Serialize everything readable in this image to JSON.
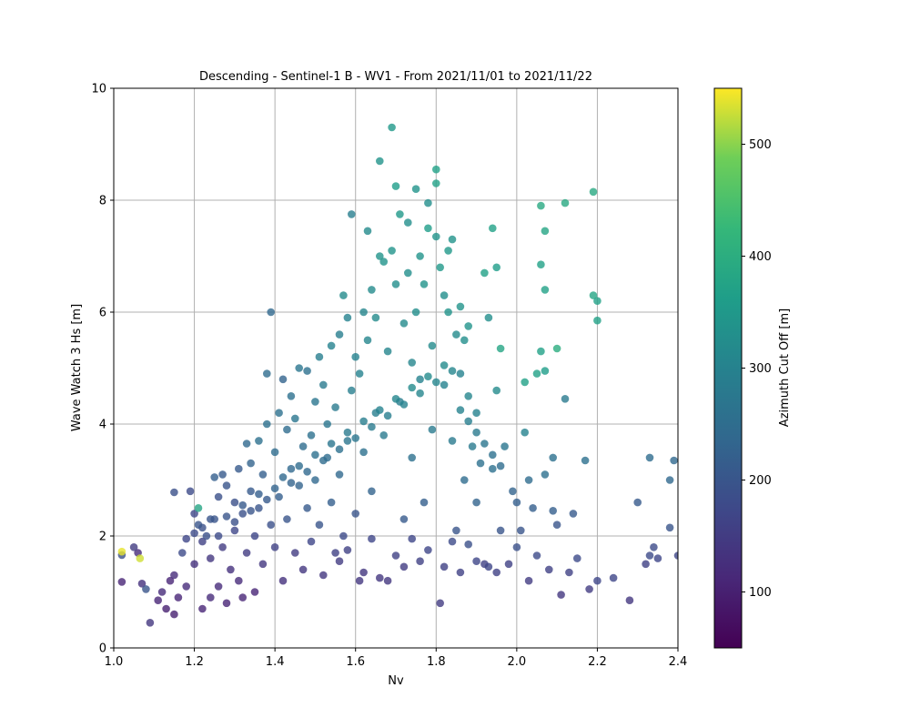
{
  "chart_data": {
    "type": "scatter",
    "title": "Descending - Sentinel-1 B - WV1 - From 2021/11/01 to 2021/11/22",
    "xlabel": "Nv",
    "ylabel": "Wave Watch 3 Hs [m]",
    "xlim": [
      1.0,
      2.4
    ],
    "ylim": [
      0,
      10
    ],
    "xticks": [
      "1.0",
      "1.2",
      "1.4",
      "1.6",
      "1.8",
      "2.0",
      "2.2",
      "2.4"
    ],
    "yticks": [
      "0",
      "2",
      "4",
      "6",
      "8",
      "10"
    ],
    "grid": true,
    "colorbar": {
      "label": "Azimuth Cut Off [m]",
      "range": [
        50,
        550
      ],
      "ticks": [
        "100",
        "200",
        "300",
        "400",
        "500"
      ],
      "colormap": "viridis"
    },
    "points": [
      [
        1.02,
        1.72,
        540
      ],
      [
        1.065,
        1.6,
        530
      ],
      [
        1.02,
        1.18,
        110
      ],
      [
        1.02,
        1.66,
        190
      ],
      [
        1.05,
        1.8,
        150
      ],
      [
        1.06,
        1.7,
        120
      ],
      [
        1.07,
        1.15,
        130
      ],
      [
        1.08,
        1.05,
        200
      ],
      [
        1.09,
        0.45,
        140
      ],
      [
        1.11,
        0.85,
        110
      ],
      [
        1.12,
        1.0,
        120
      ],
      [
        1.13,
        0.7,
        100
      ],
      [
        1.14,
        1.2,
        110
      ],
      [
        1.15,
        0.6,
        100
      ],
      [
        1.15,
        1.3,
        120
      ],
      [
        1.16,
        0.9,
        110
      ],
      [
        1.17,
        1.7,
        180
      ],
      [
        1.18,
        1.1,
        120
      ],
      [
        1.19,
        2.8,
        180
      ],
      [
        1.15,
        2.78,
        190
      ],
      [
        1.2,
        2.4,
        170
      ],
      [
        1.2,
        1.5,
        130
      ],
      [
        1.21,
        2.2,
        200
      ],
      [
        1.21,
        2.5,
        380
      ],
      [
        1.22,
        0.7,
        110
      ],
      [
        1.22,
        1.9,
        160
      ],
      [
        1.23,
        2.0,
        190
      ],
      [
        1.24,
        0.9,
        120
      ],
      [
        1.24,
        1.6,
        140
      ],
      [
        1.25,
        3.05,
        220
      ],
      [
        1.25,
        2.3,
        200
      ],
      [
        1.26,
        1.1,
        120
      ],
      [
        1.26,
        2.7,
        190
      ],
      [
        1.27,
        3.1,
        210
      ],
      [
        1.27,
        1.8,
        150
      ],
      [
        1.28,
        2.9,
        200
      ],
      [
        1.28,
        0.8,
        110
      ],
      [
        1.29,
        1.4,
        130
      ],
      [
        1.3,
        2.6,
        190
      ],
      [
        1.3,
        2.1,
        170
      ],
      [
        1.31,
        3.2,
        210
      ],
      [
        1.31,
        1.2,
        120
      ],
      [
        1.32,
        2.4,
        190
      ],
      [
        1.32,
        0.9,
        110
      ],
      [
        1.33,
        3.65,
        240
      ],
      [
        1.33,
        1.7,
        150
      ],
      [
        1.34,
        2.8,
        210
      ],
      [
        1.34,
        3.3,
        230
      ],
      [
        1.35,
        1.0,
        110
      ],
      [
        1.35,
        2.0,
        170
      ],
      [
        1.36,
        3.7,
        260
      ],
      [
        1.36,
        2.5,
        200
      ],
      [
        1.37,
        1.5,
        140
      ],
      [
        1.37,
        3.1,
        220
      ],
      [
        1.38,
        4.9,
        250
      ],
      [
        1.38,
        4.0,
        260
      ],
      [
        1.39,
        6.0,
        240
      ],
      [
        1.39,
        2.2,
        190
      ],
      [
        1.4,
        3.5,
        250
      ],
      [
        1.4,
        1.8,
        160
      ],
      [
        1.41,
        4.2,
        260
      ],
      [
        1.41,
        2.7,
        220
      ],
      [
        1.42,
        4.8,
        230
      ],
      [
        1.42,
        1.2,
        130
      ],
      [
        1.43,
        3.9,
        250
      ],
      [
        1.43,
        2.3,
        200
      ],
      [
        1.44,
        4.5,
        260
      ],
      [
        1.44,
        3.2,
        240
      ],
      [
        1.45,
        1.7,
        150
      ],
      [
        1.45,
        4.1,
        270
      ],
      [
        1.46,
        5.0,
        270
      ],
      [
        1.46,
        2.9,
        230
      ],
      [
        1.47,
        3.6,
        250
      ],
      [
        1.47,
        1.4,
        140
      ],
      [
        1.48,
        4.95,
        260
      ],
      [
        1.48,
        2.5,
        210
      ],
      [
        1.49,
        3.8,
        260
      ],
      [
        1.49,
        1.9,
        170
      ],
      [
        1.5,
        4.4,
        270
      ],
      [
        1.5,
        3.0,
        240
      ],
      [
        1.51,
        5.2,
        290
      ],
      [
        1.51,
        2.2,
        200
      ],
      [
        1.52,
        4.7,
        280
      ],
      [
        1.52,
        1.3,
        140
      ],
      [
        1.53,
        3.4,
        250
      ],
      [
        1.53,
        4.0,
        270
      ],
      [
        1.54,
        5.4,
        300
      ],
      [
        1.54,
        2.6,
        220
      ],
      [
        1.55,
        4.3,
        280
      ],
      [
        1.55,
        1.7,
        160
      ],
      [
        1.56,
        5.6,
        290
      ],
      [
        1.56,
        3.1,
        240
      ],
      [
        1.57,
        6.3,
        320
      ],
      [
        1.57,
        2.0,
        180
      ],
      [
        1.58,
        5.9,
        300
      ],
      [
        1.58,
        3.7,
        270
      ],
      [
        1.59,
        7.75,
        290
      ],
      [
        1.59,
        4.6,
        290
      ],
      [
        1.6,
        5.2,
        300
      ],
      [
        1.6,
        2.4,
        200
      ],
      [
        1.61,
        4.9,
        300
      ],
      [
        1.61,
        1.2,
        140
      ],
      [
        1.62,
        6.0,
        310
      ],
      [
        1.62,
        3.5,
        260
      ],
      [
        1.63,
        7.45,
        320
      ],
      [
        1.63,
        5.5,
        310
      ],
      [
        1.64,
        6.4,
        320
      ],
      [
        1.64,
        2.8,
        230
      ],
      [
        1.65,
        5.9,
        320
      ],
      [
        1.65,
        4.2,
        290
      ],
      [
        1.66,
        7.0,
        340
      ],
      [
        1.66,
        8.7,
        340
      ],
      [
        1.67,
        6.9,
        340
      ],
      [
        1.67,
        3.8,
        280
      ],
      [
        1.68,
        5.3,
        310
      ],
      [
        1.68,
        1.2,
        140
      ],
      [
        1.69,
        7.1,
        340
      ],
      [
        1.69,
        9.3,
        350
      ],
      [
        1.7,
        8.25,
        360
      ],
      [
        1.7,
        6.5,
        330
      ],
      [
        1.71,
        4.4,
        290
      ],
      [
        1.71,
        7.75,
        350
      ],
      [
        1.72,
        5.8,
        320
      ],
      [
        1.72,
        2.3,
        210
      ],
      [
        1.73,
        6.7,
        330
      ],
      [
        1.73,
        7.6,
        330
      ],
      [
        1.74,
        5.1,
        310
      ],
      [
        1.74,
        3.4,
        260
      ],
      [
        1.75,
        8.2,
        340
      ],
      [
        1.75,
        6.0,
        330
      ],
      [
        1.76,
        4.8,
        300
      ],
      [
        1.76,
        7.0,
        340
      ],
      [
        1.77,
        6.5,
        340
      ],
      [
        1.77,
        2.6,
        220
      ],
      [
        1.78,
        7.5,
        360
      ],
      [
        1.78,
        7.95,
        330
      ],
      [
        1.79,
        5.4,
        320
      ],
      [
        1.79,
        3.9,
        280
      ],
      [
        1.8,
        8.55,
        370
      ],
      [
        1.8,
        8.3,
        370
      ],
      [
        1.8,
        7.35,
        340
      ],
      [
        1.81,
        0.8,
        150
      ],
      [
        1.81,
        6.8,
        350
      ],
      [
        1.82,
        6.3,
        330
      ],
      [
        1.82,
        4.7,
        300
      ],
      [
        1.83,
        7.1,
        350
      ],
      [
        1.83,
        6.0,
        340
      ],
      [
        1.84,
        7.3,
        340
      ],
      [
        1.84,
        3.7,
        280
      ],
      [
        1.85,
        5.6,
        320
      ],
      [
        1.85,
        2.1,
        200
      ],
      [
        1.86,
        6.1,
        340
      ],
      [
        1.86,
        4.9,
        300
      ],
      [
        1.87,
        5.5,
        330
      ],
      [
        1.87,
        3.0,
        250
      ],
      [
        1.88,
        4.5,
        310
      ],
      [
        1.88,
        5.75,
        340
      ],
      [
        1.89,
        3.6,
        280
      ],
      [
        1.9,
        4.2,
        300
      ],
      [
        1.9,
        2.6,
        230
      ],
      [
        1.91,
        3.3,
        260
      ],
      [
        1.92,
        6.7,
        370
      ],
      [
        1.92,
        1.5,
        160
      ],
      [
        1.93,
        5.9,
        330
      ],
      [
        1.94,
        7.5,
        370
      ],
      [
        1.94,
        3.2,
        260
      ],
      [
        1.95,
        6.8,
        360
      ],
      [
        1.95,
        4.6,
        320
      ],
      [
        1.96,
        5.35,
        380
      ],
      [
        1.96,
        2.1,
        200
      ],
      [
        1.97,
        3.6,
        270
      ],
      [
        1.98,
        1.5,
        160
      ],
      [
        1.99,
        2.8,
        230
      ],
      [
        2.0,
        1.8,
        190
      ],
      [
        2.0,
        2.6,
        220
      ],
      [
        2.01,
        2.1,
        200
      ],
      [
        2.02,
        4.75,
        370
      ],
      [
        2.02,
        3.85,
        300
      ],
      [
        2.03,
        3.0,
        250
      ],
      [
        2.03,
        1.2,
        150
      ],
      [
        2.04,
        2.5,
        220
      ],
      [
        2.05,
        4.9,
        370
      ],
      [
        2.05,
        1.65,
        180
      ],
      [
        2.06,
        5.3,
        370
      ],
      [
        2.06,
        7.9,
        390
      ],
      [
        2.06,
        6.85,
        370
      ],
      [
        2.07,
        7.45,
        380
      ],
      [
        2.07,
        6.4,
        370
      ],
      [
        2.07,
        4.95,
        360
      ],
      [
        2.07,
        3.1,
        260
      ],
      [
        2.08,
        1.4,
        160
      ],
      [
        2.09,
        3.4,
        260
      ],
      [
        2.09,
        2.45,
        220
      ],
      [
        2.1,
        5.35,
        400
      ],
      [
        2.1,
        2.2,
        200
      ],
      [
        2.11,
        0.95,
        140
      ],
      [
        2.12,
        7.95,
        390
      ],
      [
        2.12,
        4.45,
        280
      ],
      [
        2.13,
        1.35,
        160
      ],
      [
        2.14,
        2.4,
        210
      ],
      [
        2.15,
        1.6,
        180
      ],
      [
        2.17,
        3.35,
        260
      ],
      [
        2.18,
        1.05,
        150
      ],
      [
        2.19,
        8.15,
        390
      ],
      [
        2.19,
        6.3,
        380
      ],
      [
        2.2,
        6.2,
        370
      ],
      [
        2.2,
        5.85,
        370
      ],
      [
        2.2,
        1.2,
        170
      ],
      [
        2.24,
        1.25,
        170
      ],
      [
        2.28,
        0.85,
        140
      ],
      [
        2.3,
        2.6,
        210
      ],
      [
        2.32,
        1.5,
        160
      ],
      [
        2.33,
        3.4,
        250
      ],
      [
        2.33,
        1.65,
        180
      ],
      [
        2.34,
        1.8,
        180
      ],
      [
        2.35,
        1.6,
        170
      ],
      [
        2.38,
        2.15,
        200
      ],
      [
        2.38,
        3.0,
        240
      ],
      [
        2.39,
        3.35,
        240
      ],
      [
        2.4,
        1.65,
        170
      ],
      [
        1.18,
        1.95,
        170
      ],
      [
        1.2,
        2.05,
        180
      ],
      [
        1.22,
        2.15,
        190
      ],
      [
        1.24,
        2.3,
        200
      ],
      [
        1.26,
        2.0,
        180
      ],
      [
        1.28,
        2.35,
        200
      ],
      [
        1.3,
        2.25,
        190
      ],
      [
        1.32,
        2.55,
        210
      ],
      [
        1.34,
        2.45,
        200
      ],
      [
        1.36,
        2.75,
        220
      ],
      [
        1.38,
        2.65,
        210
      ],
      [
        1.4,
        2.85,
        230
      ],
      [
        1.42,
        3.05,
        240
      ],
      [
        1.44,
        2.95,
        230
      ],
      [
        1.46,
        3.25,
        250
      ],
      [
        1.48,
        3.15,
        240
      ],
      [
        1.5,
        3.45,
        260
      ],
      [
        1.52,
        3.35,
        250
      ],
      [
        1.54,
        3.65,
        270
      ],
      [
        1.56,
        3.55,
        260
      ],
      [
        1.58,
        3.85,
        280
      ],
      [
        1.6,
        3.75,
        270
      ],
      [
        1.62,
        4.05,
        290
      ],
      [
        1.64,
        3.95,
        280
      ],
      [
        1.66,
        4.25,
        300
      ],
      [
        1.68,
        4.15,
        290
      ],
      [
        1.7,
        4.45,
        310
      ],
      [
        1.72,
        4.35,
        300
      ],
      [
        1.74,
        4.65,
        320
      ],
      [
        1.76,
        4.55,
        310
      ],
      [
        1.78,
        4.85,
        320
      ],
      [
        1.8,
        4.75,
        310
      ],
      [
        1.82,
        5.05,
        320
      ],
      [
        1.84,
        4.95,
        310
      ],
      [
        1.86,
        4.25,
        300
      ],
      [
        1.88,
        4.05,
        290
      ],
      [
        1.9,
        3.85,
        280
      ],
      [
        1.92,
        3.65,
        270
      ],
      [
        1.94,
        3.45,
        260
      ],
      [
        1.96,
        3.25,
        250
      ],
      [
        1.56,
        1.55,
        150
      ],
      [
        1.58,
        1.75,
        160
      ],
      [
        1.62,
        1.35,
        140
      ],
      [
        1.64,
        1.95,
        170
      ],
      [
        1.66,
        1.25,
        140
      ],
      [
        1.7,
        1.65,
        160
      ],
      [
        1.72,
        1.45,
        150
      ],
      [
        1.74,
        1.95,
        170
      ],
      [
        1.76,
        1.55,
        160
      ],
      [
        1.78,
        1.75,
        170
      ],
      [
        1.82,
        1.45,
        160
      ],
      [
        1.84,
        1.9,
        180
      ],
      [
        1.86,
        1.35,
        160
      ],
      [
        1.88,
        1.85,
        190
      ],
      [
        1.9,
        1.55,
        170
      ],
      [
        1.93,
        1.45,
        170
      ],
      [
        1.95,
        1.35,
        160
      ]
    ]
  }
}
